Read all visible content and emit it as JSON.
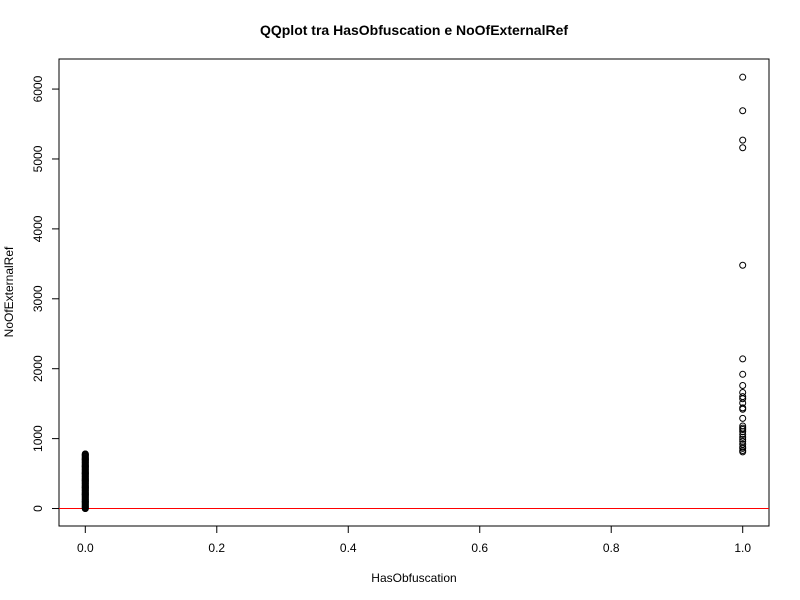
{
  "chart_data": {
    "type": "scatter",
    "title": "QQplot tra HasObfuscation e NoOfExternalRef",
    "xlabel": "HasObfuscation",
    "ylabel": "NoOfExternalRef",
    "xlim": [
      -0.04,
      1.04
    ],
    "ylim": [
      -250,
      6430
    ],
    "x_ticks": [
      0,
      0.2,
      0.4,
      0.6,
      0.8,
      1
    ],
    "x_tick_labels": [
      "0.0",
      "0.2",
      "0.4",
      "0.6",
      "0.8",
      "1.0"
    ],
    "y_ticks": [
      0,
      1000,
      2000,
      3000,
      4000,
      5000,
      6000
    ],
    "y_tick_labels": [
      "0",
      "1000",
      "2000",
      "3000",
      "4000",
      "5000",
      "6000"
    ],
    "marker": "open-circle",
    "point_color": "#000000",
    "series": [
      {
        "x_constant": 0,
        "dense_range": [
          0,
          780
        ],
        "y": [
          0,
          100,
          200,
          300,
          400,
          500,
          600,
          700,
          780
        ]
      },
      {
        "x_constant": 1,
        "y": [
          6170,
          5690,
          5270,
          5160,
          3480,
          2140,
          1920,
          1760,
          1660,
          1600,
          1570,
          1510,
          1440,
          1420,
          1290,
          1180,
          1150,
          1130,
          1100,
          1060,
          1020,
          990,
          960,
          920,
          880,
          860,
          830,
          810
        ]
      }
    ],
    "reference_line": {
      "y": 0,
      "color": "#ff0000"
    },
    "grid": false,
    "legend": "none"
  }
}
